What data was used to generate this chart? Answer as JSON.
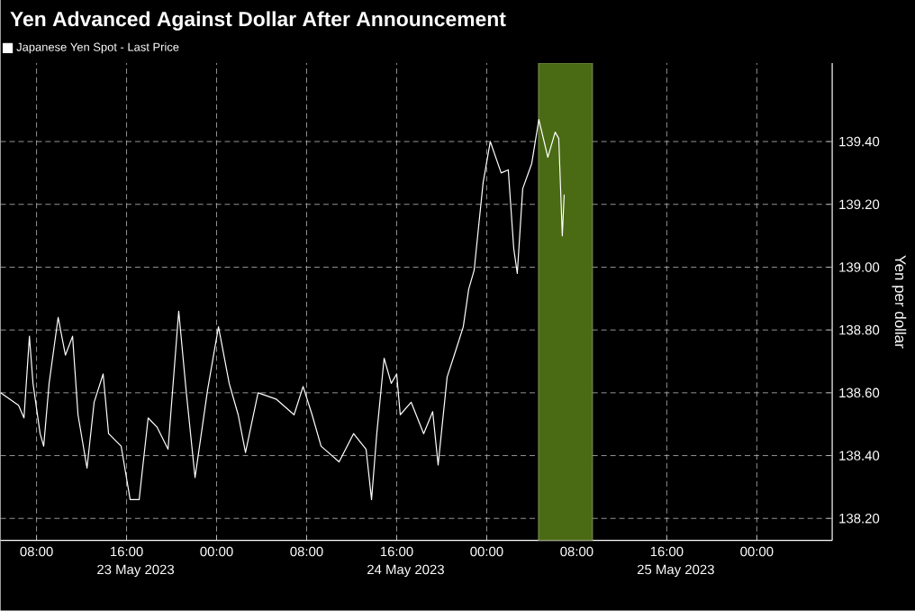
{
  "chart_data": {
    "type": "line",
    "title": "Yen Advanced Against Dollar After Announcement",
    "ylabel": "Yen per dollar",
    "legend": "top left",
    "grid": true,
    "line_style": "solid",
    "series": [
      {
        "name": "Japanese Yen Spot - Last Price",
        "color": "#ffffff",
        "x": [
          "2023-05-23T04:48",
          "2023-05-23T06:24",
          "2023-05-23T06:53",
          "2023-05-23T07:22",
          "2023-05-23T07:41",
          "2023-05-23T08:19",
          "2023-05-23T08:38",
          "2023-05-23T09:07",
          "2023-05-23T09:55",
          "2023-05-23T10:34",
          "2023-05-23T11:12",
          "2023-05-23T11:41",
          "2023-05-23T12:29",
          "2023-05-23T13:07",
          "2023-05-23T13:55",
          "2023-05-23T14:24",
          "2023-05-23T15:31",
          "2023-05-23T16:19",
          "2023-05-23T17:07",
          "2023-05-23T17:55",
          "2023-05-23T18:43",
          "2023-05-23T19:41",
          "2023-05-23T20:38",
          "2023-05-23T21:17",
          "2023-05-23T22:05",
          "2023-05-23T23:12",
          "2023-05-24T00:10",
          "2023-05-24T01:07",
          "2023-05-24T01:55",
          "2023-05-24T02:34",
          "2023-05-24T03:41",
          "2023-05-24T05:17",
          "2023-05-24T06:53",
          "2023-05-24T07:41",
          "2023-05-24T08:29",
          "2023-05-24T09:17",
          "2023-05-24T10:53",
          "2023-05-24T12:10",
          "2023-05-24T13:17",
          "2023-05-24T13:46",
          "2023-05-24T14:14",
          "2023-05-24T14:53",
          "2023-05-24T15:31",
          "2023-05-24T16:00",
          "2023-05-24T16:19",
          "2023-05-24T17:17",
          "2023-05-24T18:24",
          "2023-05-24T19:12",
          "2023-05-24T19:41",
          "2023-05-24T20:29",
          "2023-05-24T21:07",
          "2023-05-24T21:55",
          "2023-05-24T22:24",
          "2023-05-24T22:53",
          "2023-05-24T23:41",
          "2023-05-25T00:19",
          "2023-05-25T01:17",
          "2023-05-25T01:55",
          "2023-05-25T02:24",
          "2023-05-25T02:43",
          "2023-05-25T03:12",
          "2023-05-25T04:00",
          "2023-05-25T04:38",
          "2023-05-25T05:26",
          "2023-05-25T06:05",
          "2023-05-25T06:24",
          "2023-05-25T06:43",
          "2023-05-25T06:53"
        ],
        "values": [
          138.6,
          138.56,
          138.52,
          138.78,
          138.63,
          138.47,
          138.43,
          138.63,
          138.84,
          138.72,
          138.78,
          138.53,
          138.36,
          138.57,
          138.66,
          138.47,
          138.43,
          138.26,
          138.26,
          138.52,
          138.49,
          138.42,
          138.86,
          138.61,
          138.33,
          138.61,
          138.81,
          138.63,
          138.53,
          138.41,
          138.6,
          138.58,
          138.53,
          138.62,
          138.53,
          138.43,
          138.38,
          138.47,
          138.42,
          138.26,
          138.47,
          138.71,
          138.63,
          138.66,
          138.53,
          138.57,
          138.47,
          138.54,
          138.37,
          138.65,
          138.72,
          138.81,
          138.93,
          138.99,
          139.27,
          139.4,
          139.3,
          139.31,
          139.06,
          138.98,
          139.25,
          139.33,
          139.47,
          139.35,
          139.43,
          139.41,
          139.1,
          139.23
        ]
      }
    ],
    "xlim": [
      "2023-05-23T04:48",
      "2023-05-26T06:42"
    ],
    "xticks": [
      {
        "value": "2023-05-23T08:00",
        "label": "08:00"
      },
      {
        "value": "2023-05-23T16:00",
        "label": "16:00"
      },
      {
        "value": "2023-05-24T00:00",
        "label": "00:00"
      },
      {
        "value": "2023-05-24T08:00",
        "label": "08:00"
      },
      {
        "value": "2023-05-24T16:00",
        "label": "16:00"
      },
      {
        "value": "2023-05-25T00:00",
        "label": "00:00"
      },
      {
        "value": "2023-05-25T08:00",
        "label": "08:00"
      },
      {
        "value": "2023-05-25T16:00",
        "label": "16:00"
      },
      {
        "value": "2023-05-26T00:00",
        "label": "00:00"
      }
    ],
    "x2lim": [
      "2023-05-23T04:48",
      "2023-05-26T06:42"
    ],
    "x2ticks": [
      {
        "value": "2023-05-23T16:48",
        "label": "23 May 2023"
      },
      {
        "value": "2023-05-24T16:48",
        "label": "24 May 2023"
      },
      {
        "value": "2023-05-25T16:48",
        "label": "25 May 2023"
      }
    ],
    "ylim": [
      138.13,
      139.65
    ],
    "yticks": [
      {
        "value": 138.2,
        "label": "138.20"
      },
      {
        "value": 138.4,
        "label": "138.40"
      },
      {
        "value": 138.6,
        "label": "138.60"
      },
      {
        "value": 138.8,
        "label": "138.80"
      },
      {
        "value": 139.0,
        "label": "139.00"
      },
      {
        "value": 139.2,
        "label": "139.20"
      },
      {
        "value": 139.4,
        "label": "139.40"
      }
    ],
    "bands": [
      {
        "axis": "x",
        "from": "2023-05-25T04:36",
        "to": "2023-05-25T09:24",
        "color": "#4a6a14"
      }
    ]
  }
}
